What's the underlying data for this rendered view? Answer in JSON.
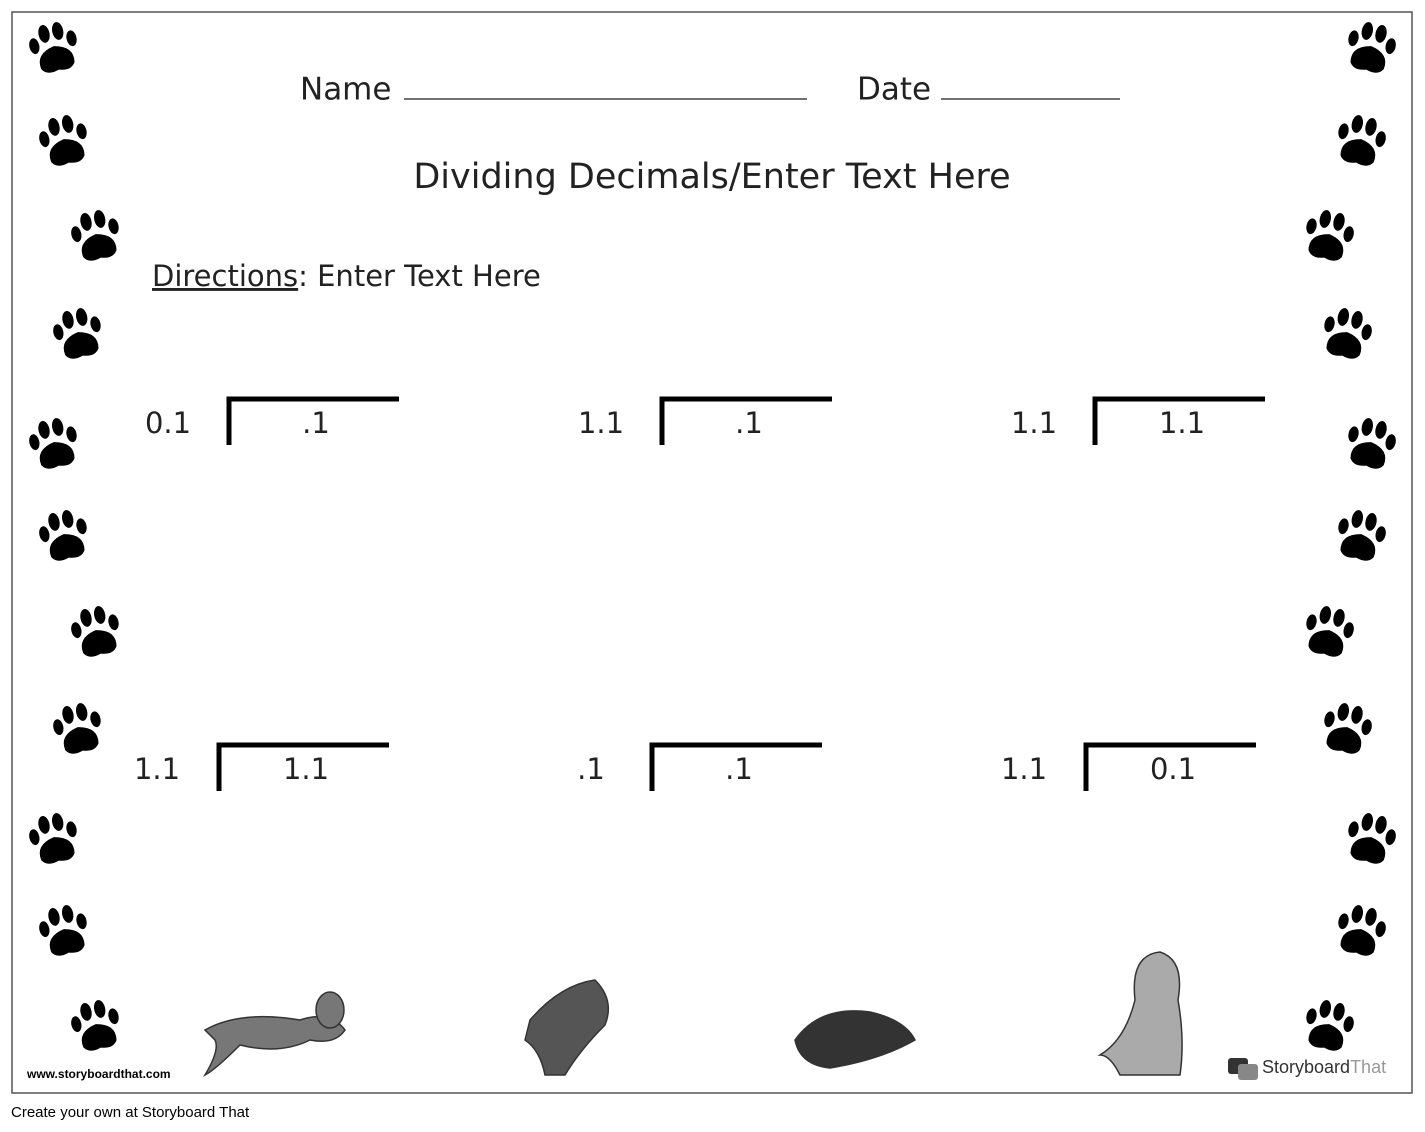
{
  "header": {
    "name_label": "Name",
    "date_label": "Date",
    "title": "Dividing Decimals/Enter Text Here",
    "directions_label": "Directions",
    "directions_text": ": Enter Text Here"
  },
  "problems": [
    {
      "divisor": "0.1",
      "dividend": ".1"
    },
    {
      "divisor": "1.1",
      "dividend": ".1"
    },
    {
      "divisor": "1.1",
      "dividend": "1.1"
    },
    {
      "divisor": "1.1",
      "dividend": "1.1"
    },
    {
      "divisor": ".1",
      "dividend": ".1"
    },
    {
      "divisor": "1.1",
      "dividend": "0.1"
    }
  ],
  "footer": {
    "url": "www.storyboardthat.com",
    "brand_first": "Storyboard",
    "brand_second": "That",
    "caption": "Create your own at Storyboard That"
  }
}
